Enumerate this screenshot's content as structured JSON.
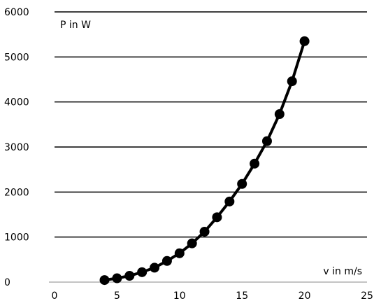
{
  "chart_data": {
    "type": "line",
    "title": "",
    "xlabel": "v in m/s",
    "ylabel": "P in W",
    "xlim": [
      0,
      25
    ],
    "ylim": [
      0,
      6000
    ],
    "x_ticks": [
      "0",
      "5",
      "10",
      "15",
      "20",
      "25"
    ],
    "y_ticks": [
      "0",
      "1000",
      "2000",
      "3000",
      "4000",
      "5000",
      "6000"
    ],
    "grid": "horizontal",
    "series": [
      {
        "marker": "circle",
        "color": "#000000",
        "x": [
          4,
          5,
          6,
          7,
          8,
          9,
          10,
          11,
          12,
          13,
          14,
          15,
          16,
          17,
          18,
          19,
          20
        ],
        "y": [
          45,
          85,
          140,
          220,
          320,
          470,
          640,
          860,
          1120,
          1440,
          1790,
          2180,
          2630,
          3130,
          3730,
          4460,
          5350
        ]
      }
    ]
  }
}
